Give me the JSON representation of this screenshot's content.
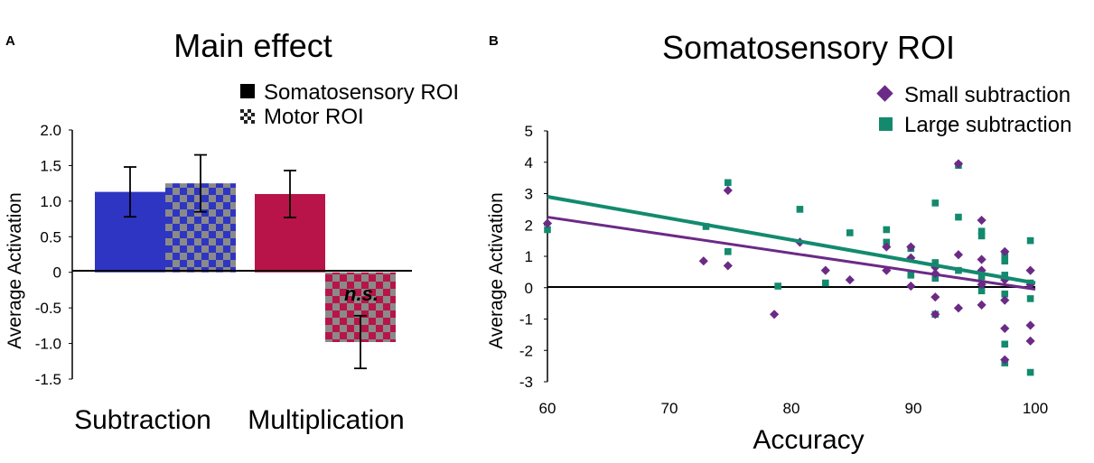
{
  "colors": {
    "subtraction": "#2e35c2",
    "multiplication": "#b8144a",
    "checker": "#8a8a8a",
    "small_subtraction": "#6b2a86",
    "large_subtraction": "#138a6e",
    "axis": "#000000"
  },
  "chart_data": [
    {
      "panel_label": "A",
      "type": "bar",
      "title": "Main effect",
      "ylabel": "Average Activation",
      "xlabel": "",
      "ylim": [
        -1.5,
        2.0
      ],
      "yticks": [
        "2.0",
        "1.5",
        "1.0",
        "0.5",
        "0",
        "-0.5",
        "-1.0",
        "-1.5"
      ],
      "categories": [
        "Subtraction",
        "Multiplication"
      ],
      "series": [
        {
          "name": "Somatosensory ROI",
          "pattern": "solid",
          "values": [
            1.13,
            1.1
          ],
          "errors": [
            0.35,
            0.33
          ]
        },
        {
          "name": "Motor ROI",
          "pattern": "checkered",
          "values": [
            1.25,
            -0.98
          ],
          "errors": [
            0.4,
            0.37
          ]
        }
      ],
      "annotation": "n.s."
    },
    {
      "panel_label": "B",
      "type": "scatter",
      "title": "Somatosensory ROI",
      "xlabel": "Accuracy",
      "ylabel": "Average Activation",
      "xlim": [
        60,
        100
      ],
      "ylim": [
        -3,
        5
      ],
      "xticks": [
        "60",
        "70",
        "80",
        "90",
        "100"
      ],
      "yticks": [
        "5",
        "4",
        "3",
        "2",
        "1",
        "0",
        "-1",
        "-2",
        "-3"
      ],
      "series": [
        {
          "name": "Small subtraction",
          "marker": "diamond",
          "points": [
            [
              60,
              2.05
            ],
            [
              72.8,
              0.85
            ],
            [
              74.8,
              3.1
            ],
            [
              74.8,
              0.7
            ],
            [
              78.6,
              -0.85
            ],
            [
              80.7,
              1.45
            ],
            [
              82.8,
              0.55
            ],
            [
              84.8,
              0.25
            ],
            [
              87.8,
              1.3
            ],
            [
              87.8,
              0.55
            ],
            [
              89.8,
              1.3
            ],
            [
              89.8,
              0.95
            ],
            [
              89.8,
              0.05
            ],
            [
              91.8,
              0.65
            ],
            [
              91.8,
              0.45
            ],
            [
              91.8,
              -0.3
            ],
            [
              91.8,
              -0.85
            ],
            [
              93.7,
              3.95
            ],
            [
              93.7,
              1.05
            ],
            [
              93.7,
              -0.65
            ],
            [
              95.6,
              2.15
            ],
            [
              95.6,
              0.9
            ],
            [
              95.6,
              0.55
            ],
            [
              95.6,
              0.1
            ],
            [
              95.6,
              -0.55
            ],
            [
              97.5,
              1.15
            ],
            [
              97.5,
              0.25
            ],
            [
              97.5,
              -0.4
            ],
            [
              97.5,
              -1.3
            ],
            [
              97.5,
              -2.3
            ],
            [
              99.6,
              0.55
            ],
            [
              99.6,
              0.1
            ],
            [
              99.6,
              -1.2
            ],
            [
              99.6,
              -1.7
            ]
          ],
          "trendline": [
            [
              60,
              2.25
            ],
            [
              100,
              -0.05
            ]
          ]
        },
        {
          "name": "Large subtraction",
          "marker": "square",
          "points": [
            [
              60,
              1.85
            ],
            [
              73,
              1.95
            ],
            [
              74.8,
              3.35
            ],
            [
              74.8,
              1.15
            ],
            [
              78.9,
              0.05
            ],
            [
              80.7,
              2.5
            ],
            [
              82.8,
              0.15
            ],
            [
              84.8,
              1.75
            ],
            [
              87.8,
              1.85
            ],
            [
              87.8,
              1.45
            ],
            [
              89.8,
              1.25
            ],
            [
              89.8,
              0.4
            ],
            [
              91.8,
              2.7
            ],
            [
              91.8,
              0.8
            ],
            [
              91.8,
              0.3
            ],
            [
              91.8,
              -0.85
            ],
            [
              93.7,
              3.9
            ],
            [
              93.7,
              2.25
            ],
            [
              93.7,
              0.55
            ],
            [
              95.6,
              1.8
            ],
            [
              95.6,
              1.65
            ],
            [
              95.6,
              0.35
            ],
            [
              95.6,
              -0.1
            ],
            [
              97.5,
              1.05
            ],
            [
              97.5,
              0.85
            ],
            [
              97.5,
              0.4
            ],
            [
              97.5,
              -0.2
            ],
            [
              97.5,
              -1.8
            ],
            [
              97.5,
              -2.4
            ],
            [
              99.6,
              1.5
            ],
            [
              99.6,
              0.15
            ],
            [
              99.6,
              -0.35
            ],
            [
              99.6,
              -2.7
            ]
          ],
          "trendline": [
            [
              60,
              2.9
            ],
            [
              100,
              0.15
            ]
          ]
        }
      ]
    }
  ]
}
